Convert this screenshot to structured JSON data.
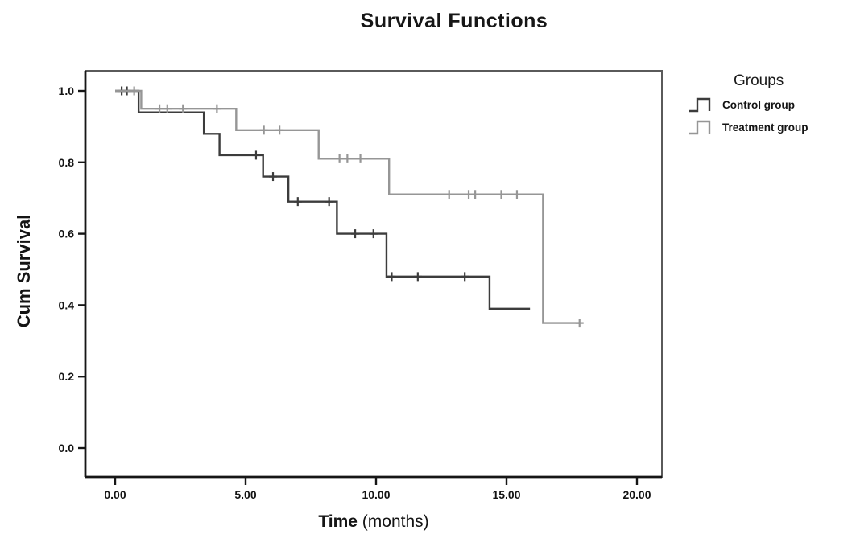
{
  "title": "Survival Functions",
  "axes": {
    "x": {
      "label_bold": "Time",
      "label_rest": " (months)"
    },
    "y": {
      "label": "Cum Survival"
    }
  },
  "legend": {
    "title": "Groups",
    "entries": [
      {
        "label": "Control group",
        "color": "#3c3c3c"
      },
      {
        "label": "Treatment group",
        "color": "#969696"
      }
    ]
  },
  "chart_data": {
    "type": "line",
    "subtype": "kaplan-meier-step",
    "title": "Survival Functions",
    "xlabel": "Time (months)",
    "ylabel": "Cum Survival",
    "xlim": [
      0,
      20
    ],
    "ylim": [
      0,
      1.0
    ],
    "grid": false,
    "legend_title": "Groups",
    "legend_position": "right",
    "x_ticks": [
      0,
      5,
      10,
      15,
      20
    ],
    "x_tick_labels": [
      "0.00",
      "5.00",
      "10.00",
      "15.00",
      "20.00"
    ],
    "y_ticks": [
      0.0,
      0.2,
      0.4,
      0.6,
      0.8,
      1.0
    ],
    "y_tick_labels": [
      "0.0",
      "0.2",
      "0.4",
      "0.6",
      "0.8",
      "1.0"
    ],
    "series": [
      {
        "name": "Control group",
        "color": "#3c3c3c",
        "steps": [
          [
            0,
            1.0
          ],
          [
            0.9,
            0.94
          ],
          [
            3.4,
            0.88
          ],
          [
            4.0,
            0.82
          ],
          [
            5.67,
            0.76
          ],
          [
            6.64,
            0.69
          ],
          [
            8.5,
            0.6
          ],
          [
            10.4,
            0.48
          ],
          [
            14.35,
            0.39
          ]
        ],
        "end_time": 15.9,
        "censored": [
          [
            0.25,
            1.0
          ],
          [
            0.45,
            1.0
          ],
          [
            5.4,
            0.82
          ],
          [
            6.05,
            0.76
          ],
          [
            7.0,
            0.69
          ],
          [
            8.2,
            0.69
          ],
          [
            9.2,
            0.6
          ],
          [
            9.9,
            0.6
          ],
          [
            10.6,
            0.48
          ],
          [
            11.6,
            0.48
          ],
          [
            13.4,
            0.48
          ]
        ]
      },
      {
        "name": "Treatment group",
        "color": "#969696",
        "steps": [
          [
            0,
            1.0
          ],
          [
            1.0,
            0.95
          ],
          [
            4.64,
            0.89
          ],
          [
            7.8,
            0.81
          ],
          [
            10.5,
            0.71
          ],
          [
            16.4,
            0.35
          ]
        ],
        "end_time": 17.8,
        "censored": [
          [
            0.73,
            1.0
          ],
          [
            1.7,
            0.95
          ],
          [
            2.0,
            0.95
          ],
          [
            2.6,
            0.95
          ],
          [
            3.9,
            0.95
          ],
          [
            5.7,
            0.89
          ],
          [
            6.3,
            0.89
          ],
          [
            8.6,
            0.81
          ],
          [
            8.9,
            0.81
          ],
          [
            9.4,
            0.81
          ],
          [
            12.8,
            0.71
          ],
          [
            13.55,
            0.71
          ],
          [
            13.8,
            0.71
          ],
          [
            14.8,
            0.71
          ],
          [
            15.4,
            0.71
          ],
          [
            17.8,
            0.35
          ]
        ]
      }
    ]
  }
}
